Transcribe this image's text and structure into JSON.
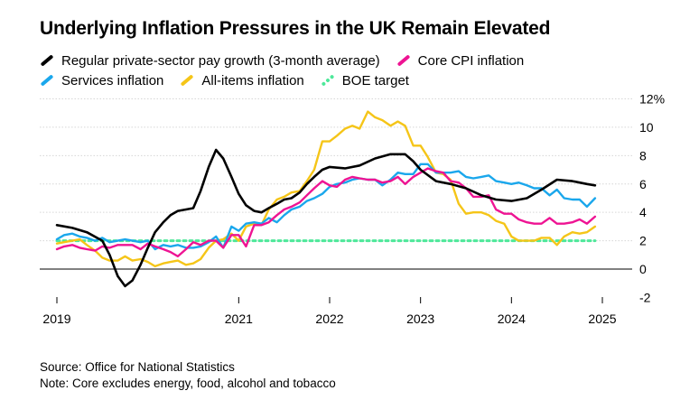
{
  "title": "Underlying Inflation Pressures in the UK Remain Elevated",
  "legend": [
    {
      "name": "Regular private-sector pay growth (3-month average)",
      "color": "#000000",
      "style": "solid"
    },
    {
      "name": "Core CPI inflation",
      "color": "#ee1493",
      "style": "solid"
    },
    {
      "name": "Services inflation",
      "color": "#1aa7ec",
      "style": "solid"
    },
    {
      "name": "All-items inflation",
      "color": "#f5c518",
      "style": "solid"
    },
    {
      "name": "BOE target",
      "color": "#4ee89a",
      "style": "dashed"
    }
  ],
  "source": "Source: Office for National Statistics",
  "note": "Note: Core excludes energy, food, alcohol and tobacco",
  "chart_data": {
    "type": "line",
    "title": "Underlying Inflation Pressures in the UK Remain Elevated",
    "xlabel": "",
    "ylabel": "",
    "x_ticks": [
      "2019",
      "2021",
      "2022",
      "2023",
      "2024",
      "2025"
    ],
    "y_ticks": [
      "12%",
      "10",
      "8",
      "6",
      "4",
      "2",
      "0",
      "-2"
    ],
    "ylim": [
      -2,
      12
    ],
    "xlim": [
      2019.0,
      2025.0
    ],
    "grid": true,
    "legend_position": "top",
    "series": [
      {
        "name": "Regular private-sector pay growth (3-month average)",
        "color": "#000000",
        "x": [
          2019.0,
          2019.17,
          2019.33,
          2019.5,
          2019.58,
          2019.67,
          2019.75,
          2019.83,
          2019.92,
          2020.0,
          2020.08,
          2020.17,
          2020.25,
          2020.33,
          2020.42,
          2020.5,
          2020.58,
          2020.67,
          2020.75,
          2020.83,
          2020.92,
          2021.0,
          2021.08,
          2021.17,
          2021.25,
          2021.33,
          2021.42,
          2021.5,
          2021.58,
          2021.67,
          2021.75,
          2021.83,
          2021.92,
          2022.0,
          2022.17,
          2022.33,
          2022.5,
          2022.67,
          2022.83,
          2022.92,
          2023.0,
          2023.17,
          2023.33,
          2023.5,
          2023.67,
          2023.83,
          2024.0,
          2024.17,
          2024.33,
          2024.5,
          2024.67,
          2024.75,
          2024.83,
          2024.92
        ],
        "y": [
          3.1,
          2.9,
          2.6,
          2.0,
          1.0,
          -0.5,
          -1.2,
          -0.8,
          0.3,
          1.5,
          2.6,
          3.3,
          3.8,
          4.1,
          4.2,
          4.3,
          5.5,
          7.2,
          8.4,
          7.8,
          6.5,
          5.3,
          4.5,
          4.1,
          4.0,
          4.3,
          4.6,
          4.9,
          5.0,
          5.4,
          6.0,
          6.5,
          7.0,
          7.2,
          7.1,
          7.3,
          7.8,
          8.1,
          8.1,
          7.6,
          7.0,
          6.2,
          6.0,
          5.7,
          5.2,
          4.9,
          4.8,
          5.0,
          5.6,
          6.3,
          6.2,
          6.1,
          6.0,
          5.9
        ]
      },
      {
        "name": "Core CPI inflation",
        "color": "#ee1493",
        "x": [
          2019.0,
          2019.08,
          2019.17,
          2019.25,
          2019.33,
          2019.42,
          2019.5,
          2019.58,
          2019.67,
          2019.75,
          2019.83,
          2019.92,
          2020.0,
          2020.08,
          2020.17,
          2020.25,
          2020.33,
          2020.42,
          2020.5,
          2020.58,
          2020.67,
          2020.75,
          2020.83,
          2020.92,
          2021.0,
          2021.08,
          2021.17,
          2021.25,
          2021.33,
          2021.42,
          2021.5,
          2021.58,
          2021.67,
          2021.75,
          2021.83,
          2021.92,
          2022.0,
          2022.08,
          2022.17,
          2022.25,
          2022.33,
          2022.42,
          2022.5,
          2022.58,
          2022.67,
          2022.75,
          2022.83,
          2022.92,
          2023.0,
          2023.08,
          2023.17,
          2023.25,
          2023.33,
          2023.42,
          2023.5,
          2023.58,
          2023.67,
          2023.75,
          2023.83,
          2023.92,
          2024.0,
          2024.08,
          2024.17,
          2024.25,
          2024.33,
          2024.42,
          2024.5,
          2024.58,
          2024.67,
          2024.75,
          2024.83,
          2024.92
        ],
        "y": [
          1.4,
          1.6,
          1.7,
          1.5,
          1.4,
          1.3,
          1.6,
          1.5,
          1.7,
          1.7,
          1.7,
          1.4,
          1.8,
          1.6,
          1.4,
          1.2,
          0.9,
          1.4,
          1.9,
          1.7,
          2.0,
          2.0,
          1.5,
          2.4,
          2.4,
          1.6,
          3.1,
          3.1,
          3.3,
          3.8,
          4.2,
          4.4,
          4.7,
          5.2,
          5.7,
          6.2,
          5.9,
          5.8,
          6.3,
          6.5,
          6.4,
          6.3,
          6.3,
          6.1,
          6.2,
          6.5,
          6.0,
          6.5,
          6.8,
          7.1,
          6.9,
          6.8,
          6.2,
          6.1,
          5.7,
          5.1,
          5.1,
          5.2,
          4.2,
          3.9,
          3.9,
          3.5,
          3.3,
          3.2,
          3.2,
          3.6,
          3.2,
          3.2,
          3.3,
          3.5,
          3.2,
          3.7
        ]
      },
      {
        "name": "Services inflation",
        "color": "#1aa7ec",
        "x": [
          2019.0,
          2019.08,
          2019.17,
          2019.25,
          2019.33,
          2019.42,
          2019.5,
          2019.58,
          2019.67,
          2019.75,
          2019.83,
          2019.92,
          2020.0,
          2020.08,
          2020.17,
          2020.25,
          2020.33,
          2020.42,
          2020.5,
          2020.58,
          2020.67,
          2020.75,
          2020.83,
          2020.92,
          2021.0,
          2021.08,
          2021.17,
          2021.25,
          2021.33,
          2021.42,
          2021.5,
          2021.58,
          2021.67,
          2021.75,
          2021.83,
          2021.92,
          2022.0,
          2022.08,
          2022.17,
          2022.25,
          2022.33,
          2022.42,
          2022.5,
          2022.58,
          2022.67,
          2022.75,
          2022.83,
          2022.92,
          2023.0,
          2023.08,
          2023.17,
          2023.25,
          2023.33,
          2023.42,
          2023.5,
          2023.58,
          2023.67,
          2023.75,
          2023.83,
          2023.92,
          2024.0,
          2024.08,
          2024.17,
          2024.25,
          2024.33,
          2024.42,
          2024.5,
          2024.58,
          2024.67,
          2024.75,
          2024.83,
          2024.92
        ],
        "y": [
          2.1,
          2.4,
          2.5,
          2.3,
          2.2,
          2.0,
          2.2,
          1.9,
          2.0,
          2.1,
          2.0,
          1.9,
          2.0,
          1.4,
          1.7,
          1.6,
          1.7,
          1.5,
          1.5,
          1.6,
          1.9,
          2.3,
          1.5,
          3.0,
          2.7,
          3.2,
          3.3,
          3.2,
          3.6,
          3.3,
          3.8,
          4.2,
          4.4,
          4.8,
          5.0,
          5.3,
          5.8,
          6.0,
          6.1,
          6.3,
          6.4,
          6.3,
          6.3,
          5.9,
          6.3,
          6.8,
          6.7,
          6.7,
          7.4,
          7.4,
          6.8,
          6.8,
          6.8,
          6.9,
          6.5,
          6.4,
          6.5,
          6.6,
          6.2,
          6.1,
          6.0,
          6.1,
          5.9,
          5.7,
          5.7,
          5.2,
          5.6,
          5.0,
          4.9,
          4.9,
          4.4,
          5.0
        ]
      },
      {
        "name": "All-items inflation",
        "color": "#f5c518",
        "x": [
          2019.0,
          2019.08,
          2019.17,
          2019.25,
          2019.33,
          2019.42,
          2019.5,
          2019.58,
          2019.67,
          2019.75,
          2019.83,
          2019.92,
          2020.0,
          2020.08,
          2020.17,
          2020.25,
          2020.33,
          2020.42,
          2020.5,
          2020.58,
          2020.67,
          2020.75,
          2020.83,
          2020.92,
          2021.0,
          2021.08,
          2021.17,
          2021.25,
          2021.33,
          2021.42,
          2021.5,
          2021.58,
          2021.67,
          2021.75,
          2021.83,
          2021.92,
          2022.0,
          2022.08,
          2022.17,
          2022.25,
          2022.33,
          2022.42,
          2022.5,
          2022.58,
          2022.67,
          2022.75,
          2022.83,
          2022.92,
          2023.0,
          2023.08,
          2023.17,
          2023.25,
          2023.33,
          2023.42,
          2023.5,
          2023.58,
          2023.67,
          2023.75,
          2023.83,
          2023.92,
          2024.0,
          2024.08,
          2024.17,
          2024.25,
          2024.33,
          2024.42,
          2024.5,
          2024.58,
          2024.67,
          2024.75,
          2024.83,
          2024.92
        ],
        "y": [
          1.8,
          1.9,
          2.0,
          2.1,
          1.7,
          1.3,
          0.8,
          0.6,
          0.6,
          0.9,
          0.6,
          0.7,
          0.5,
          0.2,
          0.4,
          0.5,
          0.6,
          0.3,
          0.4,
          0.7,
          1.5,
          2.0,
          2.1,
          2.5,
          2.0,
          3.0,
          3.2,
          3.1,
          4.2,
          4.9,
          5.1,
          5.4,
          5.5,
          6.2,
          7.0,
          9.0,
          9.0,
          9.4,
          9.9,
          10.1,
          9.9,
          11.1,
          10.7,
          10.5,
          10.1,
          10.4,
          10.1,
          8.7,
          8.7,
          7.9,
          6.8,
          6.7,
          6.3,
          4.6,
          3.9,
          4.0,
          4.0,
          3.8,
          3.4,
          3.2,
          2.3,
          2.0,
          2.0,
          2.0,
          2.2,
          2.2,
          1.7,
          2.3,
          2.6,
          2.5,
          2.6,
          3.0
        ]
      },
      {
        "name": "BOE target",
        "color": "#4ee89a",
        "x": [
          2019.0,
          2024.92
        ],
        "y": [
          2.0,
          2.0
        ]
      }
    ]
  }
}
